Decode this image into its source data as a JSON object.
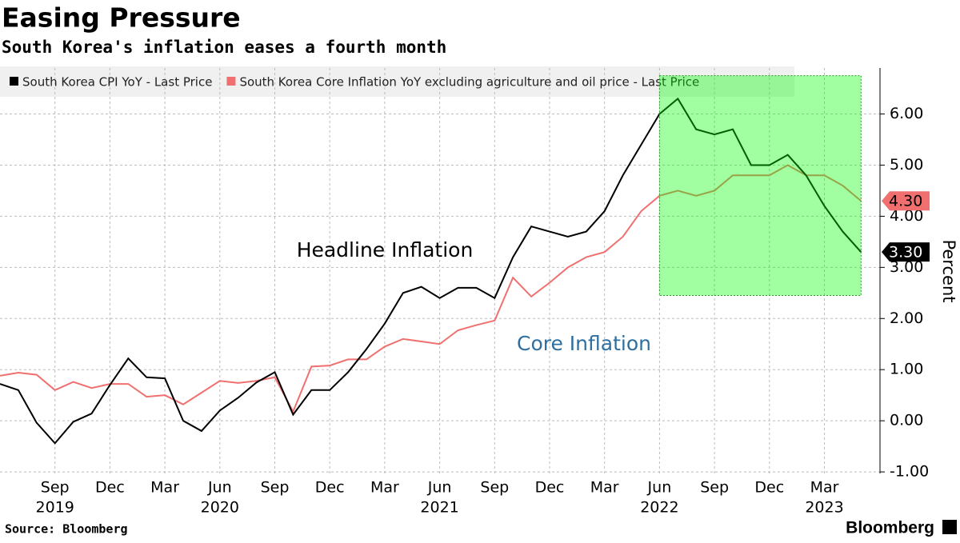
{
  "chart_data": {
    "type": "line",
    "title": "Easing Pressure",
    "subtitle": "South Korea's inflation eases a fourth month",
    "source": "Source: Bloomberg",
    "brand": "Bloomberg",
    "y_label": "Percent",
    "annotations": [
      "Headline Inflation",
      "Core Inflation"
    ],
    "categories": [
      null,
      null,
      null,
      "Sep",
      null,
      null,
      "Dec",
      null,
      null,
      "Mar",
      null,
      null,
      "Jun",
      null,
      null,
      "Sep",
      null,
      null,
      "Dec",
      null,
      null,
      "Mar",
      null,
      null,
      "Jun",
      null,
      null,
      "Sep",
      null,
      null,
      "Dec",
      null,
      null,
      "Mar",
      null,
      null,
      "Jun",
      null,
      null,
      "Sep",
      null,
      null,
      "Dec",
      null,
      null,
      "Mar",
      null,
      null
    ],
    "years": [
      null,
      null,
      null,
      "2019",
      null,
      null,
      null,
      null,
      null,
      null,
      null,
      null,
      "2020",
      null,
      null,
      null,
      null,
      null,
      null,
      null,
      null,
      null,
      null,
      null,
      "2021",
      null,
      null,
      null,
      null,
      null,
      null,
      null,
      null,
      null,
      null,
      null,
      "2022",
      null,
      null,
      null,
      null,
      null,
      null,
      null,
      null,
      "2023",
      null,
      null
    ],
    "series": [
      {
        "name": "South Korea CPI YoY - Last Price",
        "color": "#000000",
        "last_label": "3.30",
        "values": [
          0.72,
          0.6,
          -0.04,
          -0.44,
          -0.02,
          0.14,
          0.7,
          1.22,
          0.85,
          0.83,
          0.0,
          -0.2,
          0.2,
          0.45,
          0.75,
          0.95,
          0.12,
          0.6,
          0.6,
          0.95,
          1.4,
          1.9,
          2.5,
          2.62,
          2.4,
          2.6,
          2.6,
          2.4,
          3.2,
          3.8,
          3.7,
          3.6,
          3.7,
          4.1,
          4.8,
          5.4,
          6.0,
          6.3,
          5.7,
          5.6,
          5.7,
          5.0,
          5.0,
          5.2,
          4.8,
          4.2,
          3.7,
          3.3
        ]
      },
      {
        "name": "South Korea Core Inflation YoY excluding agriculture and oil price - Last Price",
        "color": "#f07070",
        "last_label": "4.30",
        "values": [
          0.88,
          0.94,
          0.9,
          0.6,
          0.76,
          0.64,
          0.72,
          0.72,
          0.47,
          0.5,
          0.32,
          0.55,
          0.78,
          0.74,
          0.78,
          0.85,
          0.18,
          1.06,
          1.08,
          1.2,
          1.2,
          1.45,
          1.6,
          1.55,
          1.5,
          1.77,
          1.87,
          1.96,
          2.8,
          2.43,
          2.7,
          3.0,
          3.2,
          3.3,
          3.6,
          4.1,
          4.4,
          4.5,
          4.4,
          4.5,
          4.8,
          4.8,
          4.8,
          5.0,
          4.8,
          4.8,
          4.6,
          4.3
        ]
      }
    ],
    "ylim": [
      -1.03,
      6.9
    ],
    "yticks": [
      {
        "value": -1,
        "label": "-1.00"
      },
      {
        "value": 0,
        "label": "0.00"
      },
      {
        "value": 1,
        "label": "1.00"
      },
      {
        "value": 2,
        "label": "2.00"
      },
      {
        "value": 3,
        "label": "3.00"
      },
      {
        "value": 4,
        "label": "4.00"
      },
      {
        "value": 5,
        "label": "5.00"
      },
      {
        "value": 6,
        "label": "6.00"
      }
    ],
    "grid": true,
    "highlight": {
      "start": 36,
      "end": 47,
      "ylim": [
        2.45,
        6.75
      ],
      "color": "#00ff00"
    }
  }
}
